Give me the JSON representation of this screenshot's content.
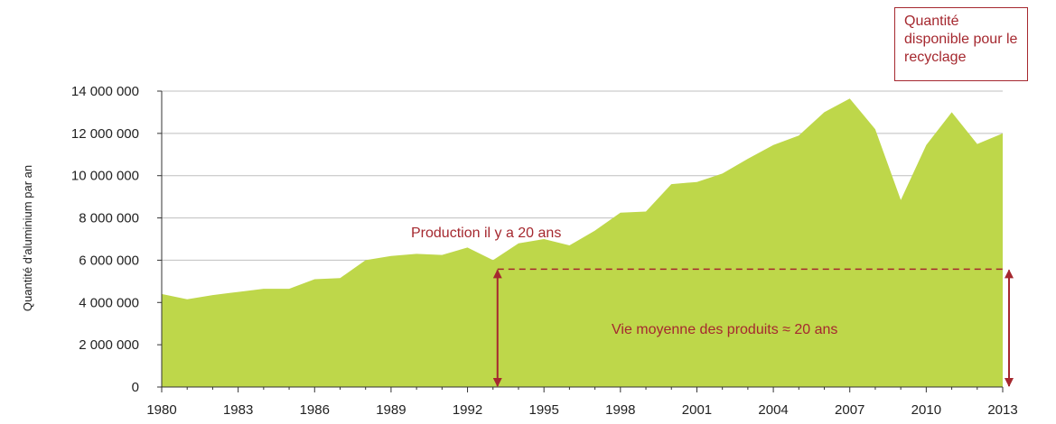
{
  "colors": {
    "area": "#bed74a",
    "accent": "#a5282f",
    "grid": "#bfbfbf",
    "axis": "#333333"
  },
  "chart_data": {
    "type": "area",
    "ylabel": "Quantité d'aluminium par an",
    "ylim": [
      0,
      14000000
    ],
    "yticks": [
      0,
      2000000,
      4000000,
      6000000,
      8000000,
      10000000,
      12000000,
      14000000
    ],
    "ytick_labels": [
      "0",
      "2 000 000",
      "4 000 000",
      "6 000 000",
      "8 000 000",
      "10 000 000",
      "12 000 000",
      "14 000 000"
    ],
    "xlim": [
      1980,
      2013
    ],
    "xticks": [
      1980,
      1983,
      1986,
      1989,
      1992,
      1995,
      1998,
      2001,
      2004,
      2007,
      2010,
      2013
    ],
    "grid": true,
    "x": [
      1980,
      1981,
      1982,
      1983,
      1984,
      1985,
      1986,
      1987,
      1988,
      1989,
      1990,
      1991,
      1992,
      1993,
      1994,
      1995,
      1996,
      1997,
      1998,
      1999,
      2000,
      2001,
      2002,
      2003,
      2004,
      2005,
      2006,
      2007,
      2008,
      2009,
      2010,
      2011,
      2012,
      2013
    ],
    "values": [
      4400000,
      4150000,
      4350000,
      4500000,
      4650000,
      4650000,
      5100000,
      5150000,
      6000000,
      6200000,
      6300000,
      6250000,
      6600000,
      6000000,
      6800000,
      7000000,
      6700000,
      7400000,
      8250000,
      8300000,
      9600000,
      9700000,
      10100000,
      10800000,
      11450000,
      11900000,
      13000000,
      13650000,
      12200000,
      8850000,
      11450000,
      13000000,
      11500000,
      12000000
    ],
    "annotations": {
      "production_label": "Production il y a 20 ans",
      "lifetime_label": "Vie moyenne des produits ≈  20 ans",
      "recycling_box": "Quantité disponible pour le recyclage"
    }
  }
}
